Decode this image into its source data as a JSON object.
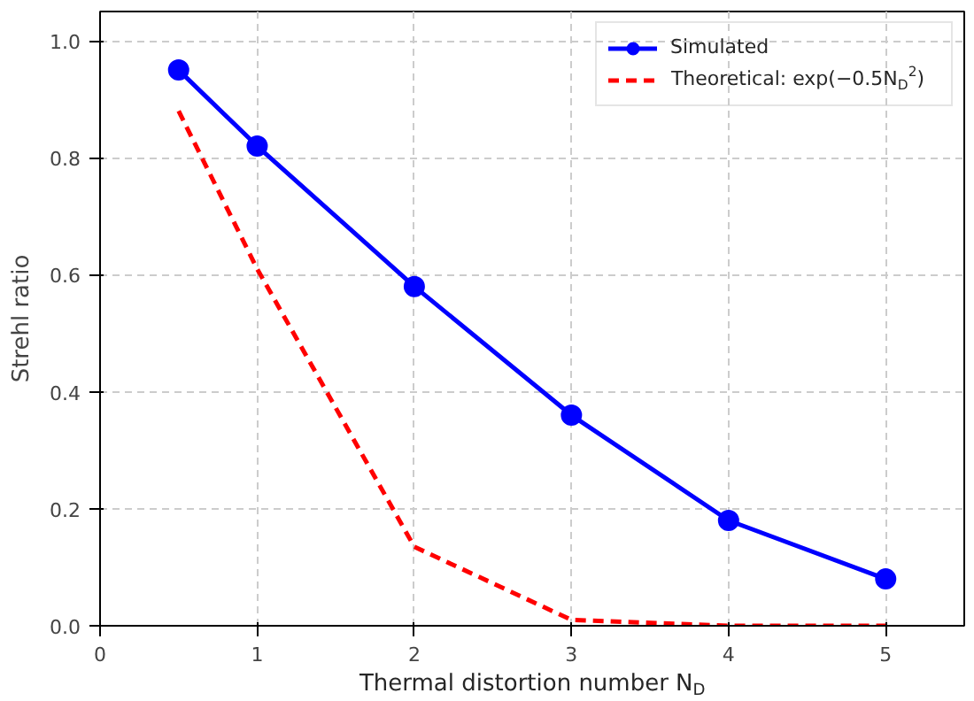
{
  "chart_data": {
    "type": "line",
    "xlabel": "Thermal distortion number N$_{D}$",
    "ylabel": "Strehl ratio",
    "x": [
      0.5,
      1,
      2,
      3,
      4,
      5
    ],
    "series": [
      {
        "name": "Simulated",
        "color": "#0000ff",
        "values": [
          0.95,
          0.82,
          0.58,
          0.36,
          0.18,
          0.08
        ],
        "marker": "circle",
        "line_style": "solid"
      },
      {
        "name": "Theoretical: exp(−0.5N$_{D}$$^{2}$)",
        "color": "#ff0000",
        "values": [
          0.88,
          0.61,
          0.135,
          0.01,
          0.0,
          0.0
        ],
        "marker": "none",
        "line_style": "dashed"
      }
    ],
    "xlim": [
      0,
      5.5
    ],
    "ylim": [
      0,
      1.05
    ],
    "xticks": [
      0,
      1,
      2,
      3,
      4,
      5
    ],
    "yticks": [
      {
        "value": 0,
        "label": "0.0"
      },
      {
        "value": 0.2,
        "label": "0.2"
      },
      {
        "value": 0.4,
        "label": "0.4"
      },
      {
        "value": 0.6,
        "label": "0.6"
      },
      {
        "value": 0.8,
        "label": "0.8"
      },
      {
        "value": 1.0,
        "label": "1.0"
      }
    ],
    "grid": true,
    "legend": "top right"
  }
}
